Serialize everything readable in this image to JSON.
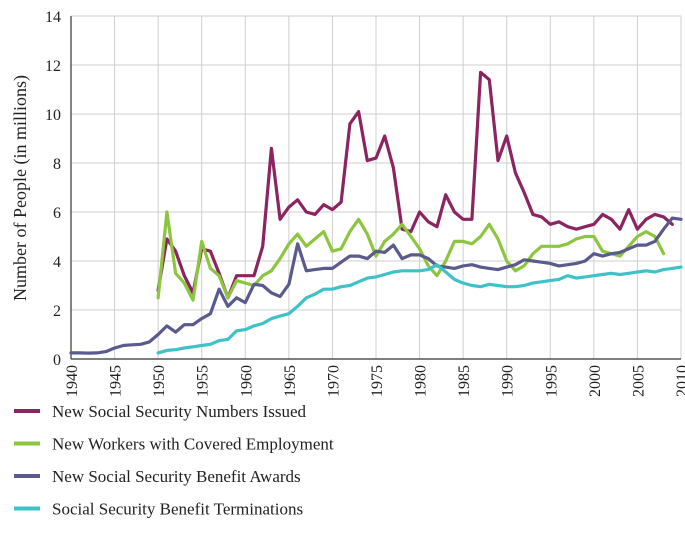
{
  "chart_data": {
    "type": "line",
    "title": "",
    "xlabel": "",
    "ylabel": "Number of People (in millions)",
    "xlim": [
      1940,
      2010
    ],
    "ylim": [
      0,
      14
    ],
    "xticks": [
      1940,
      1945,
      1950,
      1955,
      1960,
      1965,
      1970,
      1975,
      1980,
      1985,
      1990,
      1995,
      2000,
      2005,
      2010
    ],
    "yticks": [
      0,
      2,
      4,
      6,
      8,
      10,
      12,
      14
    ],
    "grid": true,
    "legend_position": "bottom",
    "series": [
      {
        "name": "New Social Security Numbers Issued",
        "color": "#8b2461",
        "x": [
          1950,
          1951,
          1952,
          1953,
          1954,
          1955,
          1956,
          1957,
          1958,
          1959,
          1960,
          1961,
          1962,
          1963,
          1964,
          1965,
          1966,
          1967,
          1968,
          1969,
          1970,
          1971,
          1972,
          1973,
          1974,
          1975,
          1976,
          1977,
          1978,
          1979,
          1980,
          1981,
          1982,
          1983,
          1984,
          1985,
          1986,
          1987,
          1988,
          1989,
          1990,
          1991,
          1992,
          1993,
          1994,
          1995,
          1996,
          1997,
          1998,
          1999,
          2000,
          2001,
          2002,
          2003,
          2004,
          2005,
          2006,
          2007,
          2008,
          2009
        ],
        "values": [
          2.8,
          4.9,
          4.4,
          3.4,
          2.7,
          4.5,
          4.4,
          3.5,
          2.5,
          3.4,
          3.4,
          3.4,
          4.6,
          8.6,
          5.7,
          6.2,
          6.5,
          6.0,
          5.9,
          6.3,
          6.1,
          6.4,
          9.6,
          10.1,
          8.1,
          8.2,
          9.1,
          7.8,
          5.3,
          5.2,
          6.0,
          5.6,
          5.4,
          6.7,
          6.0,
          5.7,
          5.7,
          11.7,
          11.4,
          8.1,
          9.1,
          7.6,
          6.8,
          5.9,
          5.8,
          5.5,
          5.6,
          5.4,
          5.3,
          5.4,
          5.5,
          5.9,
          5.7,
          5.3,
          6.1,
          5.3,
          5.7,
          5.9,
          5.8,
          5.5
        ]
      },
      {
        "name": "New Workers with Covered Employment",
        "color": "#8cc63f",
        "x": [
          1950,
          1951,
          1952,
          1953,
          1954,
          1955,
          1956,
          1957,
          1958,
          1959,
          1960,
          1961,
          1962,
          1963,
          1964,
          1965,
          1966,
          1967,
          1968,
          1969,
          1970,
          1971,
          1972,
          1973,
          1974,
          1975,
          1976,
          1977,
          1978,
          1979,
          1980,
          1981,
          1982,
          1983,
          1984,
          1985,
          1986,
          1987,
          1988,
          1989,
          1990,
          1991,
          1992,
          1993,
          1994,
          1995,
          1996,
          1997,
          1998,
          1999,
          2000,
          2001,
          2002,
          2003,
          2004,
          2005,
          2006,
          2007,
          2008
        ],
        "values": [
          2.5,
          6.0,
          3.5,
          3.1,
          2.4,
          4.8,
          3.7,
          3.4,
          2.5,
          3.2,
          3.1,
          3.0,
          3.4,
          3.6,
          4.1,
          4.7,
          5.1,
          4.6,
          4.9,
          5.2,
          4.4,
          4.5,
          5.2,
          5.7,
          5.1,
          4.2,
          4.8,
          5.1,
          5.5,
          5.0,
          4.5,
          3.8,
          3.4,
          4.0,
          4.8,
          4.8,
          4.7,
          5.0,
          5.5,
          4.9,
          4.0,
          3.6,
          3.8,
          4.3,
          4.6,
          4.6,
          4.6,
          4.7,
          4.9,
          5.0,
          5.0,
          4.4,
          4.3,
          4.2,
          4.6,
          5.0,
          5.2,
          5.0,
          4.3
        ]
      },
      {
        "name": "New Social Security Benefit Awards",
        "color": "#5a5a8c",
        "x": [
          1940,
          1941,
          1942,
          1943,
          1944,
          1945,
          1946,
          1947,
          1948,
          1949,
          1950,
          1951,
          1952,
          1953,
          1954,
          1955,
          1956,
          1957,
          1958,
          1959,
          1960,
          1961,
          1962,
          1963,
          1964,
          1965,
          1966,
          1967,
          1968,
          1969,
          1970,
          1971,
          1972,
          1973,
          1974,
          1975,
          1976,
          1977,
          1978,
          1979,
          1980,
          1981,
          1982,
          1983,
          1984,
          1985,
          1986,
          1987,
          1988,
          1989,
          1990,
          1991,
          1992,
          1993,
          1994,
          1995,
          1996,
          1997,
          1998,
          1999,
          2000,
          2001,
          2002,
          2003,
          2004,
          2005,
          2006,
          2007,
          2008,
          2009,
          2010
        ],
        "values": [
          0.25,
          0.25,
          0.24,
          0.25,
          0.3,
          0.45,
          0.55,
          0.58,
          0.6,
          0.7,
          1.0,
          1.35,
          1.1,
          1.4,
          1.4,
          1.65,
          1.85,
          2.85,
          2.15,
          2.5,
          2.3,
          3.05,
          3.0,
          2.7,
          2.55,
          3.05,
          4.7,
          3.6,
          3.65,
          3.7,
          3.7,
          3.95,
          4.2,
          4.2,
          4.1,
          4.4,
          4.35,
          4.65,
          4.1,
          4.25,
          4.25,
          4.1,
          3.8,
          3.75,
          3.7,
          3.8,
          3.85,
          3.75,
          3.7,
          3.65,
          3.75,
          3.85,
          4.05,
          4.0,
          3.95,
          3.9,
          3.8,
          3.85,
          3.9,
          4.0,
          4.3,
          4.2,
          4.3,
          4.35,
          4.5,
          4.65,
          4.65,
          4.8,
          5.3,
          5.75,
          5.7
        ]
      },
      {
        "name": "Social Security Benefit Terminations",
        "color": "#3fc1c9",
        "x": [
          1950,
          1951,
          1952,
          1953,
          1954,
          1955,
          1956,
          1957,
          1958,
          1959,
          1960,
          1961,
          1962,
          1963,
          1964,
          1965,
          1966,
          1967,
          1968,
          1969,
          1970,
          1971,
          1972,
          1973,
          1974,
          1975,
          1976,
          1977,
          1978,
          1979,
          1980,
          1981,
          1982,
          1983,
          1984,
          1985,
          1986,
          1987,
          1988,
          1989,
          1990,
          1991,
          1992,
          1993,
          1994,
          1995,
          1996,
          1997,
          1998,
          1999,
          2000,
          2001,
          2002,
          2003,
          2004,
          2005,
          2006,
          2007,
          2008,
          2009,
          2010
        ],
        "values": [
          0.25,
          0.35,
          0.38,
          0.45,
          0.5,
          0.55,
          0.6,
          0.75,
          0.8,
          1.15,
          1.2,
          1.35,
          1.45,
          1.65,
          1.75,
          1.85,
          2.15,
          2.5,
          2.65,
          2.85,
          2.85,
          2.95,
          3.0,
          3.15,
          3.3,
          3.35,
          3.45,
          3.55,
          3.6,
          3.6,
          3.6,
          3.65,
          3.85,
          3.55,
          3.25,
          3.1,
          3.0,
          2.95,
          3.05,
          3.0,
          2.95,
          2.95,
          3.0,
          3.1,
          3.15,
          3.2,
          3.25,
          3.4,
          3.3,
          3.35,
          3.4,
          3.45,
          3.5,
          3.45,
          3.5,
          3.55,
          3.6,
          3.55,
          3.65,
          3.7,
          3.75
        ]
      }
    ]
  }
}
